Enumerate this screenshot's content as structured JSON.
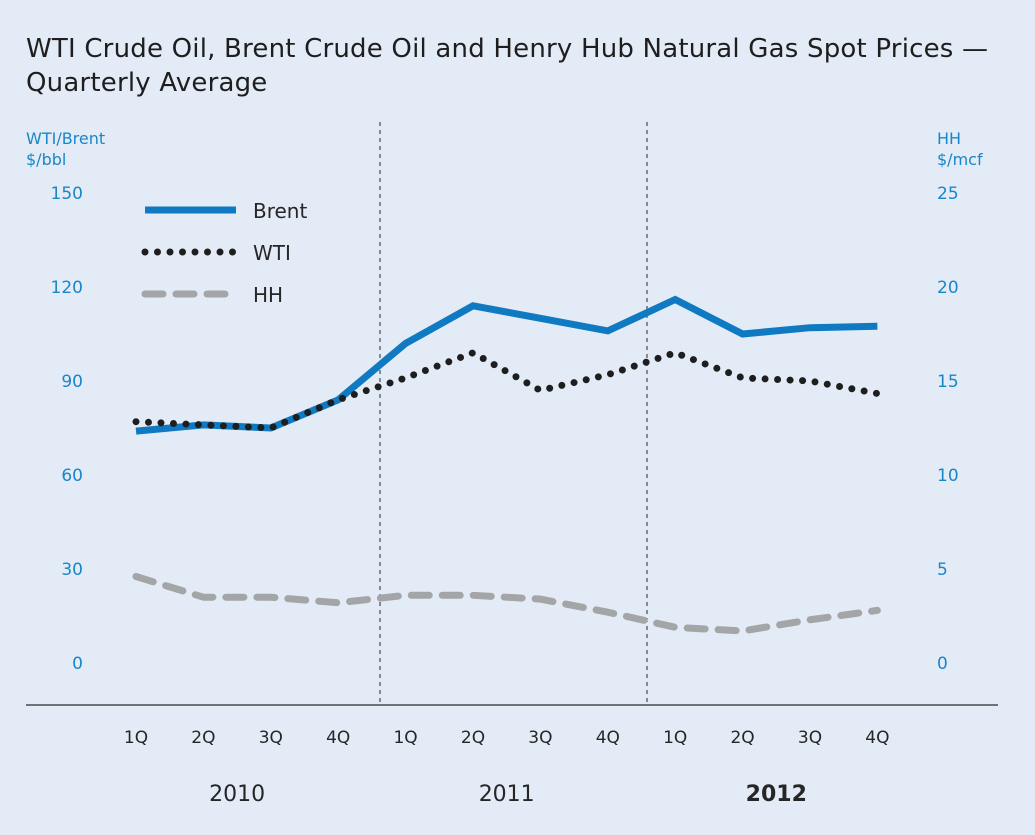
{
  "chart_data": {
    "type": "line",
    "title": "WTI Crude Oil, Brent Crude Oil and Henry Hub Natural Gas Spot Prices — Quarterly Average",
    "y_left": {
      "label_line1": "WTI/Brent",
      "label_line2": "$/bbl",
      "range": [
        0,
        150
      ],
      "ticks": [
        "150",
        "120",
        "90",
        "60",
        "30",
        "0"
      ]
    },
    "y_right": {
      "label_line1": "HH",
      "label_line2": "$/mcf",
      "range": [
        0,
        25
      ],
      "ticks": [
        "25",
        "20",
        "15",
        "10",
        "5",
        "0"
      ]
    },
    "x": [
      "1Q",
      "2Q",
      "3Q",
      "4Q",
      "1Q",
      "2Q",
      "3Q",
      "4Q",
      "1Q",
      "2Q",
      "3Q",
      "4Q"
    ],
    "years": [
      {
        "label": "2010",
        "bold": false
      },
      {
        "label": "2011",
        "bold": false
      },
      {
        "label": "2012",
        "bold": true
      }
    ],
    "series": [
      {
        "name": "Brent",
        "axis": "left",
        "color": "#0f7ac2",
        "style": "solid",
        "values": [
          74,
          76,
          75,
          84,
          102,
          114,
          110,
          106,
          116,
          105,
          107,
          107.5
        ]
      },
      {
        "name": "WTI",
        "axis": "left",
        "color": "#1e1e1e",
        "style": "dotted",
        "values": [
          77,
          76,
          75,
          84,
          91,
          99,
          87,
          92,
          99,
          91,
          90,
          86
        ]
      },
      {
        "name": "HH",
        "axis": "right",
        "color": "#a4a5a7",
        "style": "dashed",
        "values": [
          4.6,
          3.5,
          3.5,
          3.2,
          3.6,
          3.6,
          3.4,
          2.7,
          1.9,
          1.7,
          2.3,
          2.8
        ]
      }
    ],
    "legend_position": "top-left",
    "grid": false
  }
}
